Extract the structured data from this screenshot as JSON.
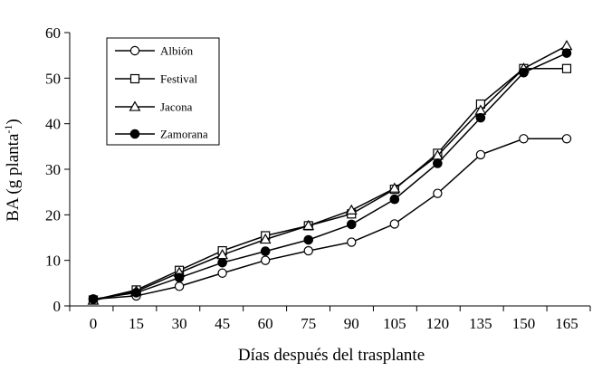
{
  "chart_data": {
    "type": "line",
    "title": "",
    "xlabel": "Días después del trasplante",
    "ylabel": "BA (g planta",
    "ylabel_sup": "-1",
    "ylabel_end": ")",
    "x": [
      0,
      15,
      30,
      45,
      60,
      75,
      90,
      105,
      120,
      135,
      150,
      165
    ],
    "x_tick_labels": [
      "0",
      "15",
      "30",
      "45",
      "60",
      "75",
      "90",
      "105",
      "120",
      "135",
      "150",
      "165"
    ],
    "y_ticks": [
      0,
      10,
      20,
      30,
      40,
      50,
      60
    ],
    "y_tick_labels": [
      "0",
      "10",
      "20",
      "30",
      "40",
      "50",
      "60"
    ],
    "ylim": [
      0,
      60
    ],
    "grid": false,
    "legend_position": "top-left",
    "series": [
      {
        "name": "Albión",
        "marker": "circle-open",
        "values": [
          1.5,
          2.2,
          4.3,
          7.2,
          10.0,
          12.1,
          14.0,
          18.0,
          24.7,
          33.2,
          36.7,
          36.7
        ]
      },
      {
        "name": "Festival",
        "marker": "square-open",
        "values": [
          1.3,
          3.5,
          7.8,
          12.1,
          15.4,
          17.6,
          20.2,
          25.6,
          33.5,
          44.3,
          52.1,
          52.1
        ]
      },
      {
        "name": "Jacona",
        "marker": "triangle-open",
        "values": [
          1.2,
          3.2,
          7.3,
          11.2,
          14.6,
          17.6,
          21.0,
          25.8,
          33.0,
          42.9,
          52.1,
          57.1
        ]
      },
      {
        "name": "Zamorana",
        "marker": "circle-filled",
        "values": [
          1.5,
          2.9,
          6.2,
          9.5,
          12.0,
          14.5,
          17.9,
          23.4,
          31.3,
          41.3,
          51.2,
          55.5
        ]
      }
    ]
  }
}
